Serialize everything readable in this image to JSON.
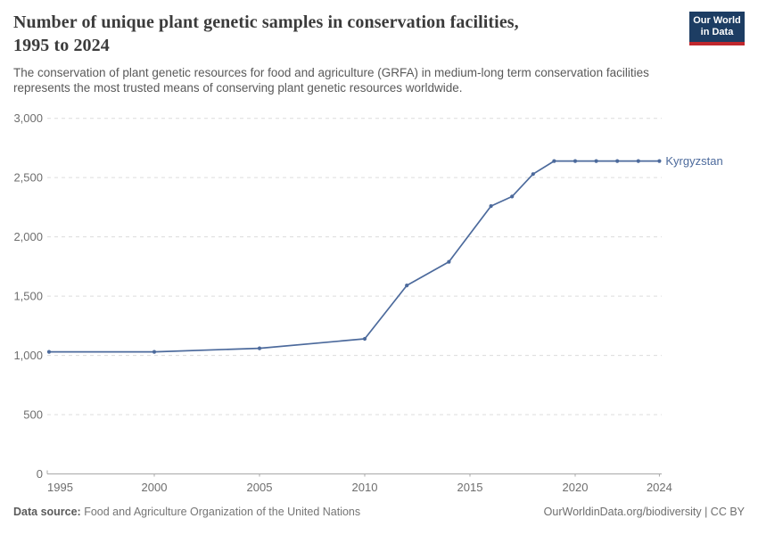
{
  "header": {
    "title_lines": [
      "Number of unique plant genetic samples in conservation facilities,",
      "1995 to 2024"
    ],
    "subtitle_lines": [
      "The conservation of plant genetic resources for food and agriculture (GRFA) in medium-long term conservation facilities",
      "represents the most trusted means of conserving plant genetic resources worldwide."
    ],
    "logo": {
      "line1": "Our World",
      "line2": "in Data"
    }
  },
  "chart_data": {
    "type": "line",
    "title": "Number of unique plant genetic samples in conservation facilities, 1995 to 2024",
    "series": [
      {
        "name": "Kyrgyzstan",
        "color": "#4c6a9c",
        "points": [
          [
            1995,
            1030
          ],
          [
            2000,
            1030
          ],
          [
            2005,
            1060
          ],
          [
            2010,
            1140
          ],
          [
            2012,
            1590
          ],
          [
            2014,
            1790
          ],
          [
            2016,
            2260
          ],
          [
            2017,
            2340
          ],
          [
            2018,
            2530
          ],
          [
            2019,
            2640
          ],
          [
            2020,
            2640
          ],
          [
            2021,
            2640
          ],
          [
            2022,
            2640
          ],
          [
            2023,
            2640
          ],
          [
            2024,
            2640
          ]
        ]
      }
    ],
    "x_ticks": [
      1995,
      2000,
      2005,
      2010,
      2015,
      2020,
      2024
    ],
    "y_ticks": [
      0,
      500,
      1000,
      1500,
      2000,
      2500,
      3000
    ],
    "xlim": [
      1995,
      2024
    ],
    "ylim": [
      0,
      3000
    ],
    "grid": "horizontal-dashed",
    "legend_position": "end-of-line-label",
    "xlabel": "",
    "ylabel": ""
  },
  "colors": {
    "line": "#4c6a9c",
    "grid": "#dcdcdc",
    "axis": "#a8a8a8",
    "tick_label": "#6e6e6e",
    "logo_bg": "#1d3d63",
    "logo_red": "#c0272d"
  },
  "footer": {
    "datasource_label": "Data source:",
    "datasource_text": "Food and Agriculture Organization of the United Nations",
    "credit": "OurWorldinData.org/biodiversity | CC BY"
  }
}
